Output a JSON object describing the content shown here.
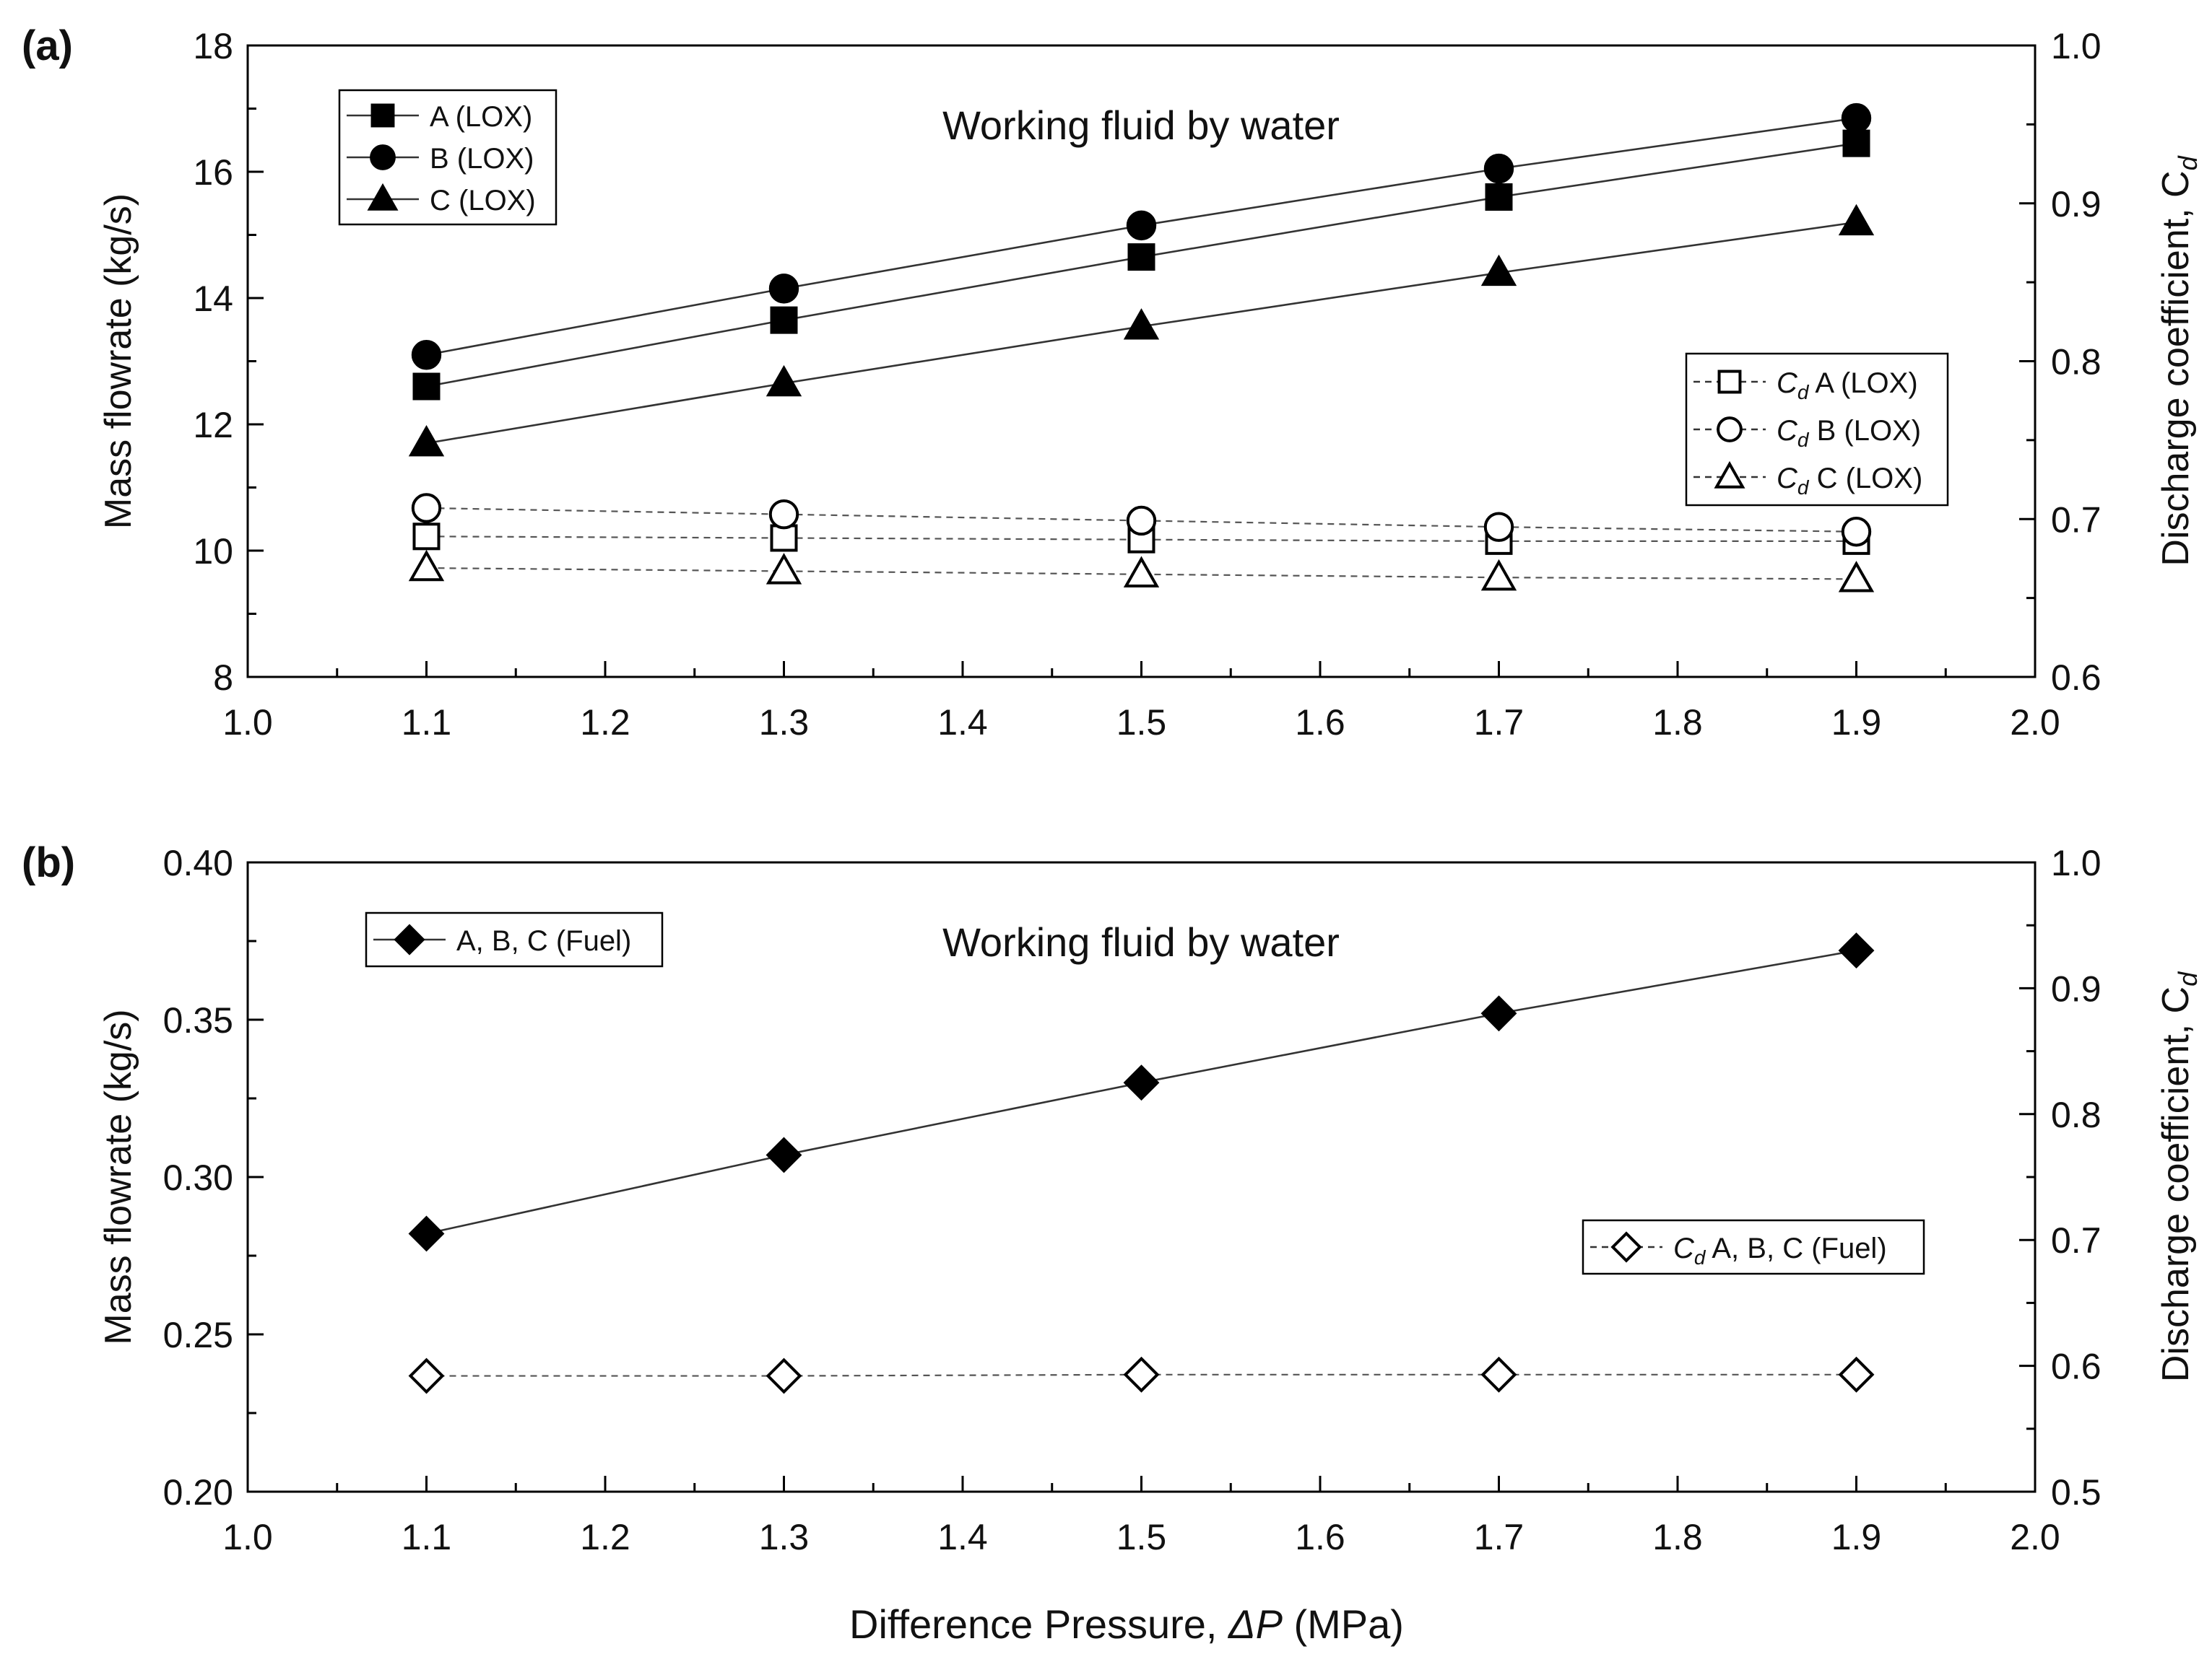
{
  "chart_data": [
    {
      "type": "line",
      "panel_label": "(a)",
      "annotation": "Working fluid by water",
      "xlabel": "Difference Pressure, ΔP (MPa)",
      "xlim": [
        1.0,
        2.0
      ],
      "x_ticks": [
        "1.0",
        "1.1",
        "1.2",
        "1.3",
        "1.4",
        "1.5",
        "1.6",
        "1.7",
        "1.8",
        "1.9",
        "2.0"
      ],
      "ylabel": "Mass flowrate (kg/s)",
      "ylim": [
        8,
        18
      ],
      "y_ticks": [
        "8",
        "10",
        "12",
        "14",
        "16",
        "18"
      ],
      "y2label": "Discharge coefficient, C",
      "y2label_sub": "d",
      "y2lim": [
        0.6,
        1.0
      ],
      "y2_ticks": [
        "0.6",
        "0.7",
        "0.8",
        "0.9",
        "1.0"
      ],
      "x": [
        1.1,
        1.3,
        1.5,
        1.7,
        1.9
      ],
      "series": [
        {
          "name": "A (LOX)",
          "axis": "left",
          "marker": "square",
          "filled": true,
          "dashed": false,
          "values": [
            12.6,
            13.65,
            14.65,
            15.6,
            16.45
          ]
        },
        {
          "name": "B (LOX)",
          "axis": "left",
          "marker": "circle",
          "filled": true,
          "dashed": false,
          "values": [
            13.1,
            14.15,
            15.15,
            16.05,
            16.85
          ]
        },
        {
          "name": "C (LOX)",
          "axis": "left",
          "marker": "triangle",
          "filled": true,
          "dashed": false,
          "values": [
            11.7,
            12.65,
            13.55,
            14.4,
            15.2
          ]
        },
        {
          "name": "A (LOX)",
          "prefix": "C",
          "prefix_sub": "d",
          "axis": "right",
          "marker": "square",
          "filled": false,
          "dashed": true,
          "values": [
            0.689,
            0.688,
            0.687,
            0.686,
            0.686
          ]
        },
        {
          "name": "B (LOX)",
          "prefix": "C",
          "prefix_sub": "d",
          "axis": "right",
          "marker": "circle",
          "filled": false,
          "dashed": true,
          "values": [
            0.707,
            0.703,
            0.699,
            0.695,
            0.692
          ]
        },
        {
          "name": "C (LOX)",
          "prefix": "C",
          "prefix_sub": "d",
          "axis": "right",
          "marker": "triangle",
          "filled": false,
          "dashed": true,
          "values": [
            0.669,
            0.667,
            0.665,
            0.663,
            0.662
          ]
        }
      ],
      "legends": [
        "top-left",
        "middle-right"
      ]
    },
    {
      "type": "line",
      "panel_label": "(b)",
      "annotation": "Working fluid by water",
      "xlabel": "Difference Pressure, ΔP (MPa)",
      "xlim": [
        1.0,
        2.0
      ],
      "x_ticks": [
        "1.0",
        "1.1",
        "1.2",
        "1.3",
        "1.4",
        "1.5",
        "1.6",
        "1.7",
        "1.8",
        "1.9",
        "2.0"
      ],
      "ylabel": "Mass flowrate (kg/s)",
      "ylim": [
        0.2,
        0.4
      ],
      "y_ticks": [
        "0.20",
        "0.25",
        "0.30",
        "0.35",
        "0.40"
      ],
      "y2label": "Discharge coefficient, C",
      "y2label_sub": "d",
      "y2lim": [
        0.5,
        1.0
      ],
      "y2_ticks": [
        "0.5",
        "0.6",
        "0.7",
        "0.8",
        "0.9",
        "1.0"
      ],
      "x": [
        1.1,
        1.3,
        1.5,
        1.7,
        1.9
      ],
      "series": [
        {
          "name": "A, B, C (Fuel)",
          "axis": "left",
          "marker": "diamond",
          "filled": true,
          "dashed": false,
          "values": [
            0.282,
            0.307,
            0.33,
            0.352,
            0.372
          ]
        },
        {
          "name": "A, B, C (Fuel)",
          "prefix": "C",
          "prefix_sub": "d",
          "axis": "right",
          "marker": "diamond",
          "filled": false,
          "dashed": true,
          "values": [
            0.592,
            0.592,
            0.593,
            0.593,
            0.593
          ]
        }
      ],
      "legends": [
        "top-left",
        "middle-right"
      ]
    }
  ],
  "shared_xlabel": {
    "before": "Difference Pressure, ",
    "symbol": "ΔP",
    "after": " (MPa)"
  }
}
